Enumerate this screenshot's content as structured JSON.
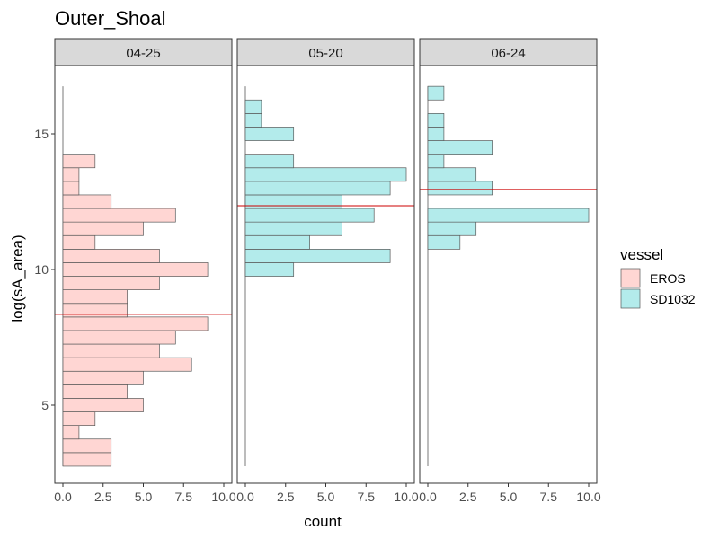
{
  "chart_data": {
    "type": "bar",
    "orientation": "horizontal",
    "title": "Outer_Shoal",
    "xlabel": "count",
    "ylabel": "log(sA_area)",
    "xlim": [
      0,
      10
    ],
    "ylim": [
      2.2,
      17.2
    ],
    "x_ticks": [
      "0.0",
      "2.5",
      "5.0",
      "7.5",
      "10.0"
    ],
    "x_tick_values": [
      0,
      2.5,
      5,
      7.5,
      10
    ],
    "y_ticks": [
      "5",
      "10",
      "15"
    ],
    "y_tick_values": [
      5,
      10,
      15
    ],
    "bin_width": 0.5,
    "grid": false,
    "legend": {
      "title": "vessel",
      "position": "right",
      "entries": [
        {
          "label": "EROS",
          "fill": "#ffd6d3"
        },
        {
          "label": "SD1032",
          "fill": "#b3ebeb"
        }
      ]
    },
    "panels": [
      {
        "label": "04-25",
        "vessel": "EROS",
        "color": "#ffd6d3",
        "mean_line": 8.35,
        "range": [
          2.75,
          16.75
        ],
        "bins": [
          {
            "y": 3.0,
            "count": 3
          },
          {
            "y": 3.5,
            "count": 3
          },
          {
            "y": 4.0,
            "count": 1
          },
          {
            "y": 4.5,
            "count": 2
          },
          {
            "y": 5.0,
            "count": 5
          },
          {
            "y": 5.5,
            "count": 4
          },
          {
            "y": 6.0,
            "count": 5
          },
          {
            "y": 6.5,
            "count": 8
          },
          {
            "y": 7.0,
            "count": 6
          },
          {
            "y": 7.5,
            "count": 7
          },
          {
            "y": 8.0,
            "count": 9
          },
          {
            "y": 8.5,
            "count": 4
          },
          {
            "y": 9.0,
            "count": 4
          },
          {
            "y": 9.5,
            "count": 6
          },
          {
            "y": 10.0,
            "count": 9
          },
          {
            "y": 10.5,
            "count": 6
          },
          {
            "y": 11.0,
            "count": 2
          },
          {
            "y": 11.5,
            "count": 5
          },
          {
            "y": 12.0,
            "count": 7
          },
          {
            "y": 12.5,
            "count": 3
          },
          {
            "y": 13.0,
            "count": 1
          },
          {
            "y": 13.5,
            "count": 1
          },
          {
            "y": 14.0,
            "count": 2
          }
        ]
      },
      {
        "label": "05-20",
        "vessel": "SD1032",
        "color": "#b3ebeb",
        "mean_line": 12.35,
        "range": [
          2.75,
          16.75
        ],
        "bins": [
          {
            "y": 10.0,
            "count": 3
          },
          {
            "y": 10.5,
            "count": 9
          },
          {
            "y": 11.0,
            "count": 4
          },
          {
            "y": 11.5,
            "count": 6
          },
          {
            "y": 12.0,
            "count": 8
          },
          {
            "y": 12.5,
            "count": 6
          },
          {
            "y": 13.0,
            "count": 9
          },
          {
            "y": 13.5,
            "count": 10
          },
          {
            "y": 14.0,
            "count": 3
          },
          {
            "y": 15.0,
            "count": 3
          },
          {
            "y": 15.5,
            "count": 1
          },
          {
            "y": 16.0,
            "count": 1
          }
        ]
      },
      {
        "label": "06-24",
        "vessel": "SD1032",
        "color": "#b3ebeb",
        "mean_line": 12.95,
        "range": [
          2.75,
          16.75
        ],
        "bins": [
          {
            "y": 11.0,
            "count": 2
          },
          {
            "y": 11.5,
            "count": 3
          },
          {
            "y": 12.0,
            "count": 10
          },
          {
            "y": 13.0,
            "count": 4
          },
          {
            "y": 13.5,
            "count": 3
          },
          {
            "y": 14.0,
            "count": 1
          },
          {
            "y": 14.5,
            "count": 4
          },
          {
            "y": 15.0,
            "count": 1
          },
          {
            "y": 15.5,
            "count": 1
          },
          {
            "y": 16.5,
            "count": 1
          }
        ]
      }
    ]
  }
}
